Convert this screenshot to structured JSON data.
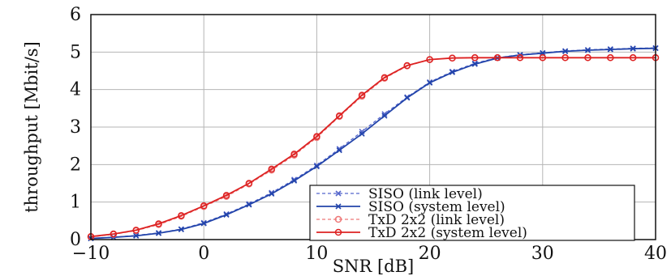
{
  "chart_data": {
    "type": "line",
    "xlabel": "SNR [dB]",
    "ylabel": "throughput [Mbit/s]",
    "xlim": [
      -10,
      40
    ],
    "ylim": [
      0,
      6
    ],
    "xticks": [
      -10,
      0,
      10,
      20,
      30,
      40
    ],
    "xtick_labels": [
      "−10",
      "0",
      "10",
      "20",
      "30",
      "40"
    ],
    "yticks": [
      0,
      1,
      2,
      3,
      4,
      5,
      6
    ],
    "ytick_labels": [
      "0",
      "1",
      "2",
      "3",
      "4",
      "5",
      "6"
    ],
    "grid": true,
    "legend_position": "bottom-right",
    "series": [
      {
        "name": "SISO (link level)",
        "color": "#5566cc",
        "line_style": "dashed",
        "marker": "x",
        "x": [
          -10,
          -8,
          -6,
          -4,
          -2,
          0,
          2,
          4,
          6,
          8,
          10,
          12,
          14,
          16,
          18,
          20,
          22,
          24,
          26,
          28,
          30,
          32,
          34,
          36,
          38,
          40
        ],
        "y": [
          0.03,
          0.06,
          0.11,
          0.18,
          0.28,
          0.45,
          0.68,
          0.95,
          1.25,
          1.6,
          1.98,
          2.42,
          2.88,
          3.35,
          3.8,
          4.2,
          4.48,
          4.7,
          4.85,
          4.93,
          4.98,
          5.03,
          5.06,
          5.08,
          5.1,
          5.11
        ]
      },
      {
        "name": "SISO (system level)",
        "color": "#2244aa",
        "line_style": "solid",
        "marker": "x",
        "x": [
          -10,
          -8,
          -6,
          -4,
          -2,
          0,
          2,
          4,
          6,
          8,
          10,
          12,
          14,
          16,
          18,
          20,
          22,
          24,
          26,
          28,
          30,
          32,
          34,
          36,
          38,
          40
        ],
        "y": [
          0.03,
          0.06,
          0.1,
          0.17,
          0.27,
          0.43,
          0.66,
          0.93,
          1.22,
          1.57,
          1.95,
          2.38,
          2.82,
          3.3,
          3.78,
          4.18,
          4.46,
          4.68,
          4.84,
          4.92,
          4.97,
          5.02,
          5.05,
          5.07,
          5.09,
          5.1
        ]
      },
      {
        "name": "TxD 2x2 (link level)",
        "color": "#ee7777",
        "line_style": "dashed",
        "marker": "o",
        "x": [
          -10,
          -8,
          -6,
          -4,
          -2,
          0,
          2,
          4,
          6,
          8,
          10,
          12,
          14,
          16,
          18,
          20,
          22,
          24,
          26,
          28,
          30,
          32,
          34,
          36,
          38,
          40
        ],
        "y": [
          0.07,
          0.14,
          0.24,
          0.4,
          0.62,
          0.88,
          1.15,
          1.48,
          1.85,
          2.25,
          2.72,
          3.28,
          3.82,
          4.3,
          4.63,
          4.8,
          4.84,
          4.85,
          4.85,
          4.85,
          4.85,
          4.85,
          4.85,
          4.85,
          4.85,
          4.85
        ]
      },
      {
        "name": "TxD 2x2 (system level)",
        "color": "#dd2222",
        "line_style": "solid",
        "marker": "o",
        "x": [
          -10,
          -8,
          -6,
          -4,
          -2,
          0,
          2,
          4,
          6,
          8,
          10,
          12,
          14,
          16,
          18,
          20,
          22,
          24,
          26,
          28,
          30,
          32,
          34,
          36,
          38,
          40
        ],
        "y": [
          0.08,
          0.15,
          0.25,
          0.42,
          0.64,
          0.9,
          1.18,
          1.5,
          1.88,
          2.28,
          2.75,
          3.3,
          3.85,
          4.32,
          4.64,
          4.8,
          4.84,
          4.85,
          4.85,
          4.85,
          4.85,
          4.85,
          4.85,
          4.85,
          4.85,
          4.85
        ]
      }
    ]
  }
}
